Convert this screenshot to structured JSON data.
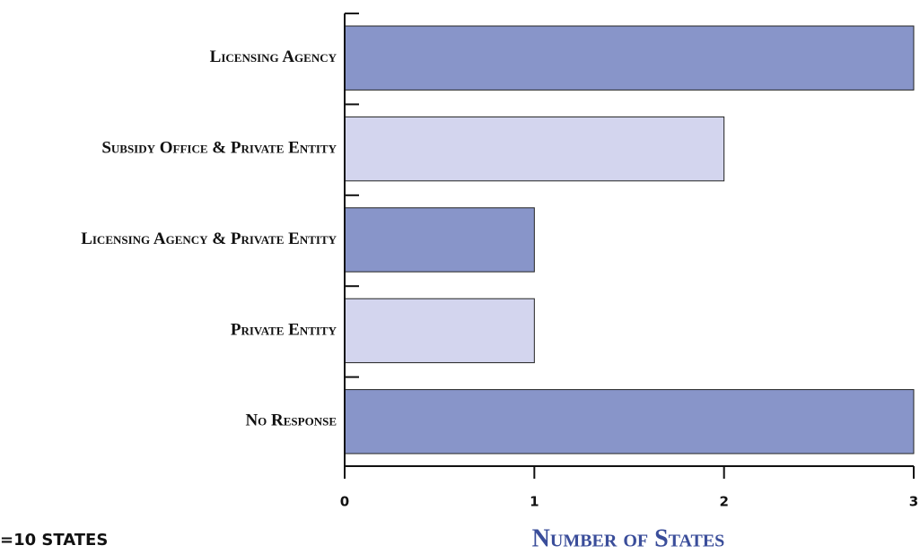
{
  "chart_data": {
    "type": "bar",
    "orientation": "horizontal",
    "categories": [
      "Licensing Agency",
      "Subsidy Office & Private Entity",
      "Licensing Agency & Private Entity",
      "Private Entity",
      "No Response"
    ],
    "values": [
      3,
      2,
      1,
      1,
      3
    ],
    "colors": [
      "#8895c9",
      "#d3d5ee",
      "#8895c9",
      "#d3d5ee",
      "#8895c9"
    ],
    "xlim": [
      0,
      3
    ],
    "xticks": [
      0,
      1,
      2,
      3
    ],
    "x_label": "Number of States",
    "annotation": "=10 STATES"
  }
}
